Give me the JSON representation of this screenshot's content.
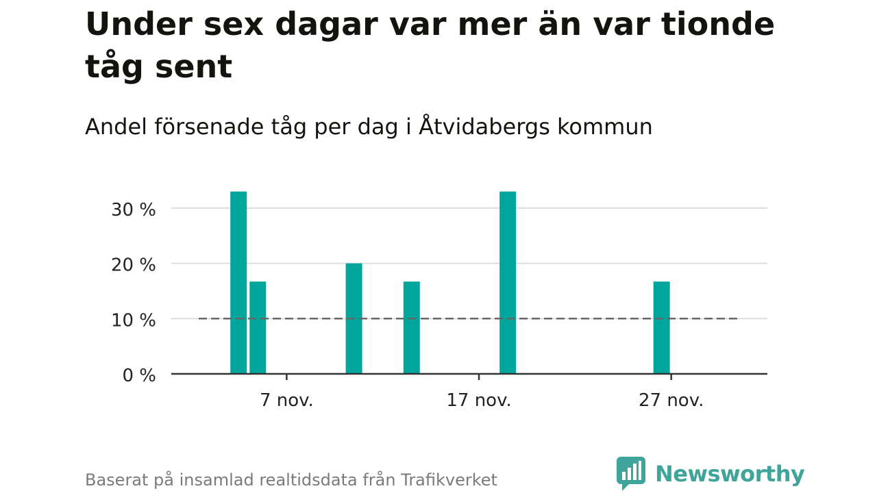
{
  "title": "Under sex dagar var mer än var tionde tåg sent",
  "subtitle": "Andel försenade tåg per dag i Åtvidabergs kommun",
  "source": "Baserat på insamlad realtidsdata från Trafikverket",
  "brand": {
    "name": "Newsworthy",
    "icon": "bar-chart-speech-bubble-icon",
    "color": "#3fa49a"
  },
  "chart_data": {
    "type": "bar",
    "x_unit": "day of November",
    "x_domain": [
      1,
      32
    ],
    "x": [
      4,
      5,
      10,
      13,
      18,
      26
    ],
    "values": [
      33.3,
      16.7,
      20,
      16.7,
      33.3,
      16.7
    ],
    "ylim": [
      0,
      33
    ],
    "yticks": [
      0,
      10,
      20,
      30
    ],
    "ytick_labels": [
      "0 %",
      "10 %",
      "20 %",
      "30 %"
    ],
    "xticks": [
      7,
      17,
      27
    ],
    "xtick_labels": [
      "7 nov.",
      "17 nov.",
      "27 nov."
    ],
    "reference_line": {
      "value": 10,
      "style": "dashed",
      "color": "#666666"
    },
    "bar_color": "#00a69c",
    "grid": true,
    "grid_color": "#dddddd",
    "xlabel": "",
    "ylabel": ""
  }
}
